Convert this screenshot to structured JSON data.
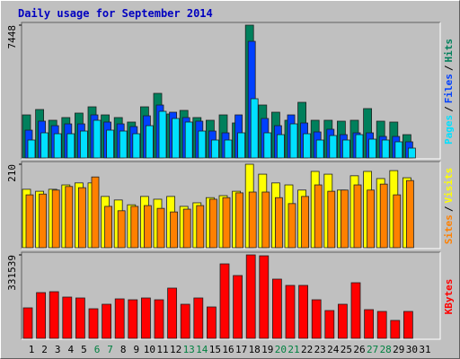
{
  "chart_data": {
    "type": "bar",
    "title": "Daily usage for September 2014",
    "title_color": "#0000C0",
    "categories": [
      "1",
      "2",
      "3",
      "4",
      "5",
      "6",
      "7",
      "8",
      "9",
      "10",
      "11",
      "12",
      "13",
      "14",
      "15",
      "16",
      "17",
      "18",
      "19",
      "20",
      "21",
      "22",
      "23",
      "24",
      "25",
      "26",
      "27",
      "28",
      "29",
      "30",
      "31"
    ],
    "weekend_index": [
      5,
      6,
      12,
      13,
      19,
      20,
      26,
      27
    ],
    "weekend_color": "#008040",
    "separator": "/",
    "panels": [
      {
        "ylim": [
          0,
          7448
        ],
        "yticks": [
          7448
        ],
        "series": [
          {
            "name": "Hits",
            "color": "#00805c",
            "values": [
              2415,
              2717,
              2114,
              2265,
              2516,
              2868,
              2415,
              2265,
              2013,
              2868,
              3623,
              2466,
              2667,
              2265,
              2114,
              2415,
              1963,
              7448,
              2969,
              2566,
              2114,
              3120,
              2114,
              2114,
              2063,
              2114,
              2768,
              2063,
              2013,
              1308,
              null
            ]
          },
          {
            "name": "Files",
            "color": "#0040ff",
            "values": [
              1559,
              2063,
              1811,
              1911,
              1911,
              2415,
              2013,
              1911,
              1761,
              2364,
              2968,
              2566,
              2264,
              2063,
              1509,
              1409,
              2415,
              6540,
              2214,
              1811,
              2415,
              1962,
              1459,
              1610,
              1308,
              1409,
              1409,
              1207,
              1207,
              906,
              null
            ]
          },
          {
            "name": "Pages",
            "color": "#00e0ff",
            "values": [
              1006,
              1409,
              1358,
              1358,
              1509,
              2113,
              1560,
              1509,
              1358,
              1811,
              2616,
              2214,
              2013,
              1509,
              1006,
              1006,
              1409,
              3321,
              1409,
              1308,
              1912,
              1358,
              1006,
              1258,
              1006,
              1308,
              1056,
              1006,
              906,
              553,
              null
            ]
          }
        ]
      },
      {
        "ylim": [
          0,
          210
        ],
        "yticks": [
          210
        ],
        "series": [
          {
            "name": "Visits",
            "color": "#ffff00",
            "values": [
              147,
              142,
              147,
              158,
              163,
              163,
              129,
              120,
              108,
              129,
              122,
              129,
              104,
              113,
              126,
              131,
              142,
              210,
              185,
              163,
              158,
              145,
              192,
              185,
              145,
              181,
              192,
              174,
              194,
              176,
              null
            ]
          },
          {
            "name": "Sites",
            "color": "#ff8000",
            "values": [
              133,
              135,
              145,
              154,
              151,
              178,
              104,
              93,
              104,
              106,
              99,
              90,
              97,
              106,
              122,
              126,
              138,
              140,
              140,
              126,
              111,
              129,
              158,
              142,
              145,
              158,
              145,
              160,
              133,
              169,
              null
            ]
          }
        ]
      },
      {
        "ylim": [
          0,
          331539
        ],
        "yticks": [
          331539
        ],
        "series": [
          {
            "name": "KBytes",
            "color": "#ff0000",
            "values": [
              121210,
              181815,
              185380,
              163990,
              160425,
              117645,
              135470,
              156860,
              153295,
              160425,
              153295,
              199640,
              135470,
              160425,
              124775,
              295895,
              249550,
              331539,
              327980,
              235290,
              210335,
              210335,
              153295,
              110515,
              135470,
              221030,
              114080,
              106950,
              71300,
              106950,
              null
            ]
          }
        ]
      }
    ]
  }
}
